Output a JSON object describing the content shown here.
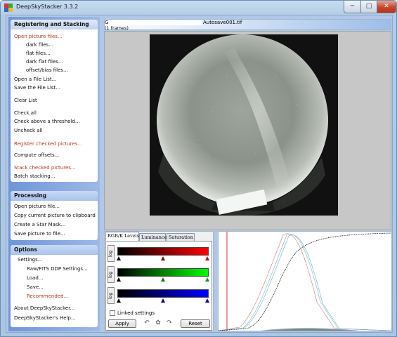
{
  "window": {
    "title": "DeepSkyStacker 3.3.2",
    "minimize": "─",
    "maximize": "□",
    "close": "✕"
  },
  "sidebar": {
    "registering": {
      "header": "Registering and Stacking",
      "items": [
        {
          "label": "Open picture files...",
          "red": true
        },
        {
          "label": "dark files..."
        },
        {
          "label": "flat files..."
        },
        {
          "label": "dark flat files..."
        },
        {
          "label": "offset/bias files..."
        },
        {
          "label": "Open a File List..."
        },
        {
          "label": "Save the File List..."
        },
        {
          "label": "Clear List"
        },
        {
          "label": "Check all"
        },
        {
          "label": "Check above a threshold..."
        },
        {
          "label": "Uncheck all"
        },
        {
          "label": "Register checked pictures...",
          "red": true
        },
        {
          "label": "Compute offsets..."
        },
        {
          "label": "Stack checked pictures...",
          "red": true
        },
        {
          "label": "Batch stacking..."
        }
      ]
    },
    "processing": {
      "header": "Processing",
      "items": [
        {
          "label": "Open picture file..."
        },
        {
          "label": "Copy current picture to clipboard"
        },
        {
          "label": "Create a Star Mask..."
        },
        {
          "label": "Save picture to file..."
        }
      ]
    },
    "options": {
      "header": "Options",
      "items": [
        {
          "label": "Settings..."
        },
        {
          "label": "Raw/FITS DDP Settings..."
        },
        {
          "label": "Load..."
        },
        {
          "label": "Save..."
        },
        {
          "label": "Recommended...",
          "red": true
        },
        {
          "label": "About DeepSkyStacker..."
        },
        {
          "label": "DeepSkyStacker's Help..."
        }
      ]
    }
  },
  "infobar": {
    "path_prefix": "G",
    "filename": "Autosave001.tif",
    "frames": "(1 frames)"
  },
  "levels": {
    "tabs": [
      "RGB/K Levels",
      "Luminance",
      "Saturation"
    ],
    "log_label": "log",
    "linked_label": "Linked settings",
    "apply_label": "Apply",
    "reset_label": "Reset",
    "colors": {
      "red": "#ff0000",
      "green": "#00ff00",
      "blue": "#0000ff"
    }
  }
}
